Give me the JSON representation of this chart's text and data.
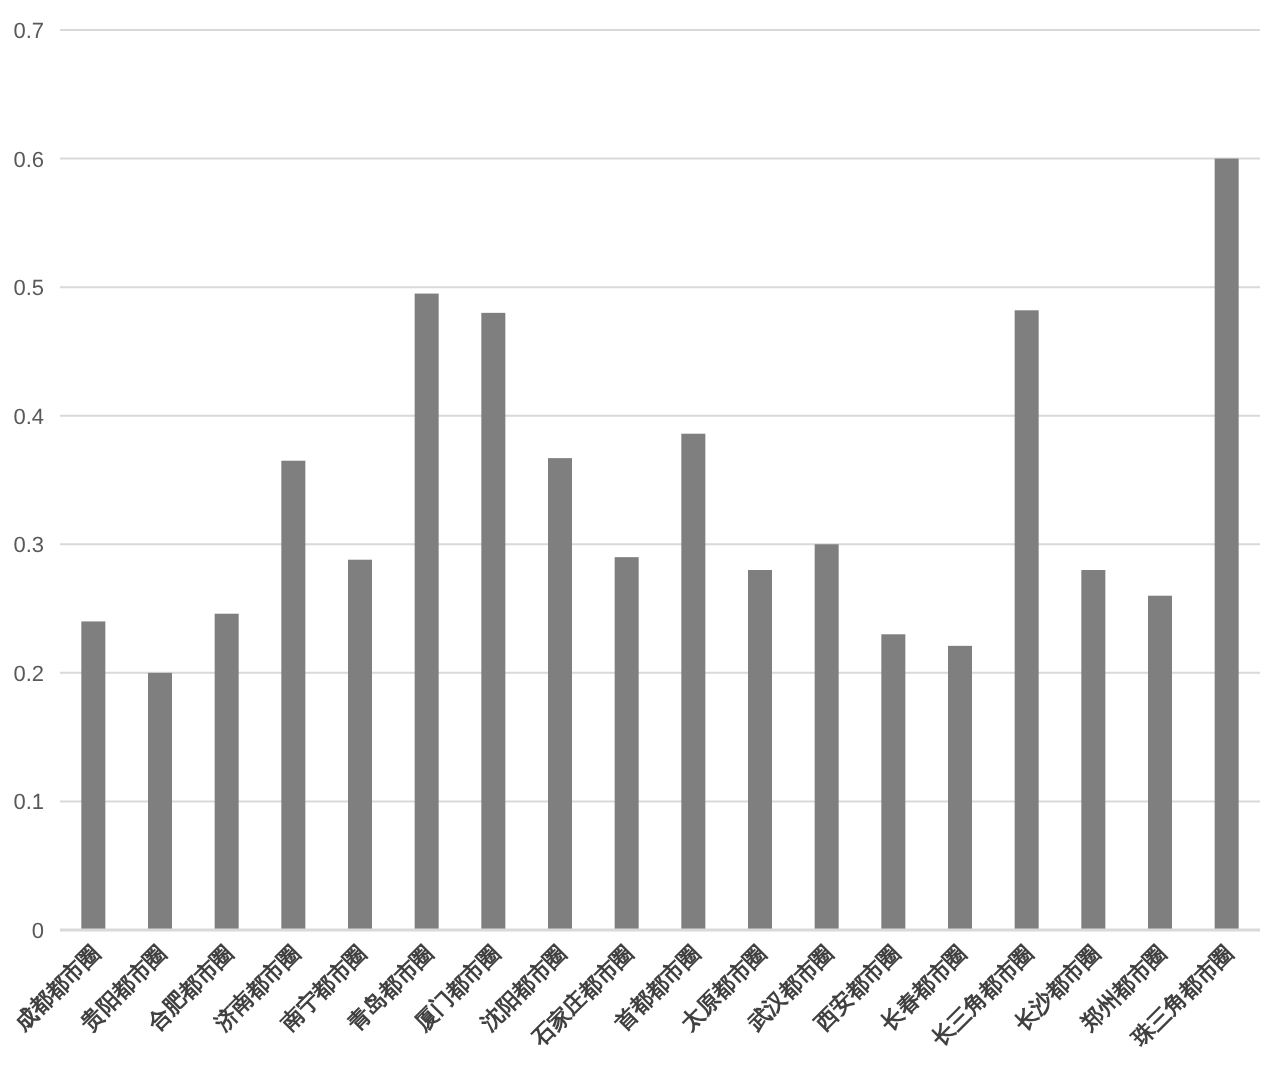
{
  "chart_data": {
    "type": "bar",
    "categories": [
      "成都都市圈",
      "贵阳都市圈",
      "合肥都市圈",
      "济南都市圈",
      "南宁都市圈",
      "青岛都市圈",
      "厦门都市圈",
      "沈阳都市圈",
      "石家庄都市圈",
      "首都都市圈",
      "太原都市圈",
      "武汉都市圈",
      "西安都市圈",
      "长春都市圈",
      "长三角都市圈",
      "长沙都市圈",
      "郑州都市圈",
      "珠三角都市圈"
    ],
    "values": [
      0.24,
      0.2,
      0.246,
      0.365,
      0.288,
      0.495,
      0.48,
      0.367,
      0.29,
      0.386,
      0.28,
      0.3,
      0.23,
      0.221,
      0.482,
      0.28,
      0.26,
      0.6
    ],
    "color": "#7f7f7f",
    "ylim": [
      0,
      0.7
    ],
    "yticks": [
      0,
      0.1,
      0.2,
      0.3,
      0.4,
      0.5,
      0.6,
      0.7
    ],
    "grid": "y"
  }
}
